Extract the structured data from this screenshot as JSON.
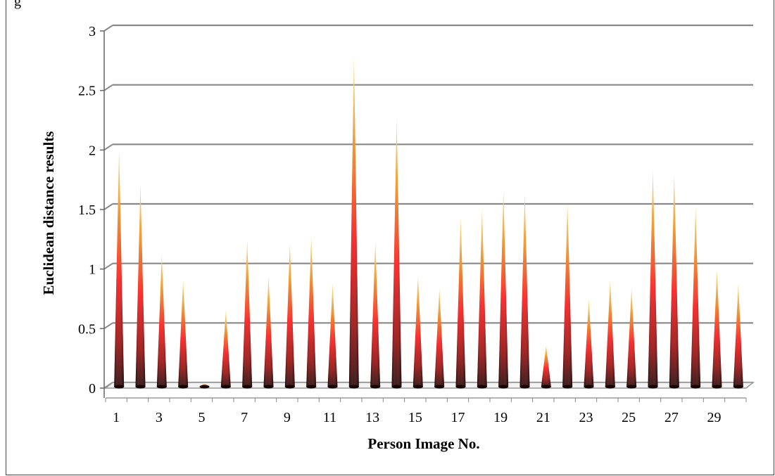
{
  "chart_data": {
    "type": "bar",
    "bar_shape": "cone",
    "x": [
      1,
      2,
      3,
      4,
      5,
      6,
      7,
      8,
      9,
      10,
      11,
      12,
      13,
      14,
      15,
      16,
      17,
      18,
      19,
      20,
      21,
      22,
      23,
      24,
      25,
      26,
      27,
      28,
      29,
      30
    ],
    "x_tick_labels": [
      "1",
      "3",
      "5",
      "7",
      "9",
      "11",
      "13",
      "15",
      "17",
      "19",
      "21",
      "23",
      "25",
      "27",
      "29"
    ],
    "values": [
      2.03,
      1.74,
      1.15,
      0.93,
      0.06,
      0.68,
      1.27,
      0.96,
      1.24,
      1.29,
      0.9,
      2.82,
      1.25,
      2.3,
      0.97,
      0.86,
      1.46,
      1.53,
      1.68,
      1.66,
      0.38,
      1.58,
      0.77,
      0.93,
      0.86,
      1.86,
      1.82,
      1.55,
      1.02,
      0.9
    ],
    "xlabel": "Person Image No.",
    "ylabel": "Euclidean distance results",
    "ylim": [
      0,
      3
    ],
    "y_ticks": [
      0,
      0.5,
      1,
      1.5,
      2,
      2.5,
      3
    ],
    "y_tick_labels": [
      "0",
      "0.5",
      "1",
      "1.5",
      "2",
      "2.5",
      "3"
    ],
    "grid": true,
    "legend": "none",
    "colors": {
      "base": "#3a0d0d",
      "mid": "#ff1a1a",
      "upper": "#f28c1e",
      "tip": "#f7d86a",
      "grid": "#888888"
    }
  }
}
